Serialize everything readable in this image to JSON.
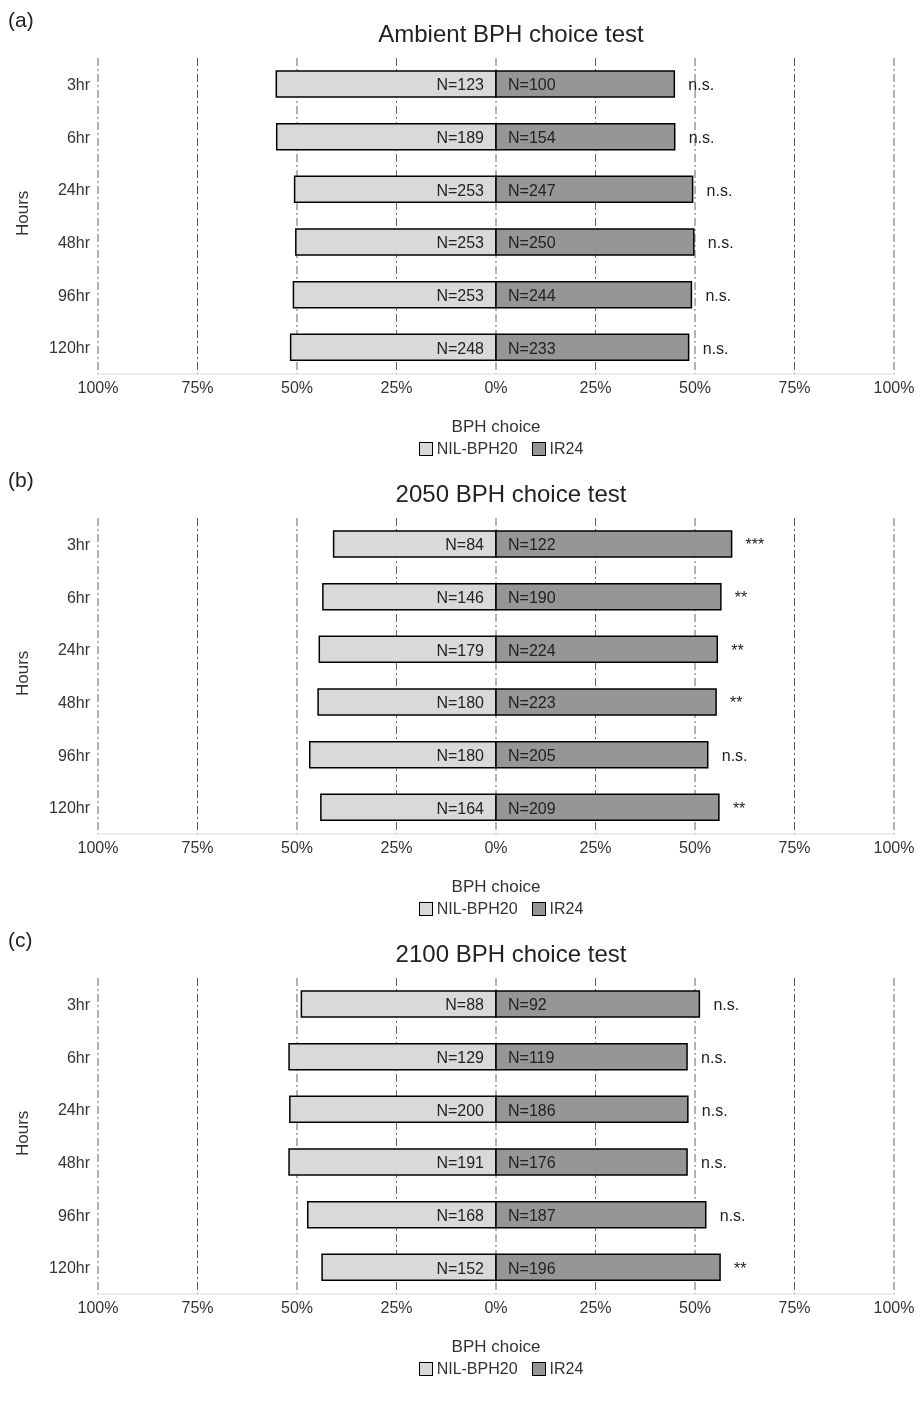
{
  "chart_data": [
    {
      "type": "bar",
      "orientation": "horizontal",
      "stacked": true,
      "title": "Ambient BPH choice test",
      "xlabel": "BPH choice",
      "ylabel": "Hours",
      "categories": [
        "3hr",
        "6hr",
        "24hr",
        "48hr",
        "96hr",
        "120hr"
      ],
      "series": [
        {
          "name": "NIL-BPH20",
          "color": "#d9d9d9",
          "values": [
            -55.2,
            -55.1,
            -50.6,
            -50.3,
            -50.9,
            -51.6
          ]
        },
        {
          "name": "IR24",
          "color": "#969696",
          "values": [
            44.8,
            44.9,
            49.4,
            49.7,
            49.1,
            48.4
          ]
        }
      ],
      "xlim": [
        -100,
        100
      ],
      "xticks": [
        {
          "value": -100,
          "label": "100%"
        },
        {
          "value": -75,
          "label": "75%"
        },
        {
          "value": -50,
          "label": "50%"
        },
        {
          "value": -25,
          "label": "25%"
        },
        {
          "value": 0,
          "label": "0%"
        },
        {
          "value": 25,
          "label": "25%"
        },
        {
          "value": 50,
          "label": "50%"
        },
        {
          "value": 75,
          "label": "75%"
        },
        {
          "value": 100,
          "label": "100%"
        }
      ],
      "grid": "x",
      "legend": "bottom",
      "annotations": [
        "(a)",
        "N=123",
        "N=189",
        "N=253",
        "N=253",
        "N=253",
        "N=248",
        "N=100",
        "N=154",
        "N=247",
        "N=250",
        "N=244",
        "N=233",
        {
          "text": "n.s.",
          "x": 44.8,
          "y": "3hr"
        },
        {
          "text": "n.s.",
          "x": 44.9,
          "y": "6hr"
        },
        {
          "text": "n.s.",
          "x": 49.4,
          "y": "24hr"
        },
        {
          "text": "n.s.",
          "x": 49.7,
          "y": "48hr"
        },
        {
          "text": "n.s.",
          "x": 49.1,
          "y": "96hr"
        },
        {
          "text": "n.s.",
          "x": 48.4,
          "y": "120hr"
        }
      ]
    },
    {
      "type": "bar",
      "orientation": "horizontal",
      "stacked": true,
      "title": "2050 BPH choice test",
      "xlabel": "BPH choice",
      "ylabel": "Hours",
      "categories": [
        "3hr",
        "6hr",
        "24hr",
        "48hr",
        "96hr",
        "120hr"
      ],
      "series": [
        {
          "name": "NIL-BPH20",
          "color": "#d9d9d9",
          "values": [
            -40.8,
            -43.5,
            -44.4,
            -44.7,
            -46.8,
            -44.0
          ]
        },
        {
          "name": "IR24",
          "color": "#969696",
          "values": [
            59.2,
            56.5,
            55.6,
            55.3,
            53.2,
            56.0
          ]
        }
      ],
      "xlim": [
        -100,
        100
      ],
      "xticks": [
        {
          "value": -100,
          "label": "100%"
        },
        {
          "value": -75,
          "label": "75%"
        },
        {
          "value": -50,
          "label": "50%"
        },
        {
          "value": -25,
          "label": "25%"
        },
        {
          "value": 0,
          "label": "0%"
        },
        {
          "value": 25,
          "label": "25%"
        },
        {
          "value": 50,
          "label": "50%"
        },
        {
          "value": 75,
          "label": "75%"
        },
        {
          "value": 100,
          "label": "100%"
        }
      ],
      "grid": "x",
      "legend": "bottom",
      "annotations": [
        "(b)",
        "N=84",
        "N=146",
        "N=179",
        "N=180",
        "N=180",
        "N=164",
        "N=122",
        "N=190",
        "N=224",
        "N=223",
        "N=205",
        "N=209",
        {
          "text": "***",
          "x": 59.2,
          "y": "3hr"
        },
        {
          "text": "**",
          "x": 56.5,
          "y": "6hr"
        },
        {
          "text": "**",
          "x": 55.6,
          "y": "24hr"
        },
        {
          "text": "**",
          "x": 55.3,
          "y": "48hr"
        },
        {
          "text": "n.s.",
          "x": 53.2,
          "y": "96hr"
        },
        {
          "text": "**",
          "x": 56.0,
          "y": "120hr"
        }
      ]
    },
    {
      "type": "bar",
      "orientation": "horizontal",
      "stacked": true,
      "title": "2100 BPH choice test",
      "xlabel": "BPH choice",
      "ylabel": "Hours",
      "categories": [
        "3hr",
        "6hr",
        "24hr",
        "48hr",
        "96hr",
        "120hr"
      ],
      "series": [
        {
          "name": "NIL-BPH20",
          "color": "#d9d9d9",
          "values": [
            -48.9,
            -52.0,
            -51.8,
            -52.0,
            -47.3,
            -43.7
          ]
        },
        {
          "name": "IR24",
          "color": "#969696",
          "values": [
            51.1,
            48.0,
            48.2,
            48.0,
            52.7,
            56.3
          ]
        }
      ],
      "xlim": [
        -100,
        100
      ],
      "xticks": [
        {
          "value": -100,
          "label": "100%"
        },
        {
          "value": -75,
          "label": "75%"
        },
        {
          "value": -50,
          "label": "50%"
        },
        {
          "value": -25,
          "label": "25%"
        },
        {
          "value": 0,
          "label": "0%"
        },
        {
          "value": 25,
          "label": "25%"
        },
        {
          "value": 50,
          "label": "50%"
        },
        {
          "value": 75,
          "label": "75%"
        },
        {
          "value": 100,
          "label": "100%"
        }
      ],
      "grid": "x",
      "legend": "bottom",
      "annotations": [
        "(c)",
        "N=88",
        "N=129",
        "N=200",
        "N=191",
        "N=168",
        "N=152",
        "N=92",
        "N=119",
        "N=186",
        "N=176",
        "N=187",
        "N=196",
        {
          "text": "n.s.",
          "x": 51.1,
          "y": "3hr"
        },
        {
          "text": "n.s.",
          "x": 48.0,
          "y": "6hr"
        },
        {
          "text": "n.s.",
          "x": 48.2,
          "y": "24hr"
        },
        {
          "text": "n.s.",
          "x": 48.0,
          "y": "48hr"
        },
        {
          "text": "n.s.",
          "x": 52.7,
          "y": "96hr"
        },
        {
          "text": "**",
          "x": 56.3,
          "y": "120hr"
        }
      ]
    }
  ]
}
